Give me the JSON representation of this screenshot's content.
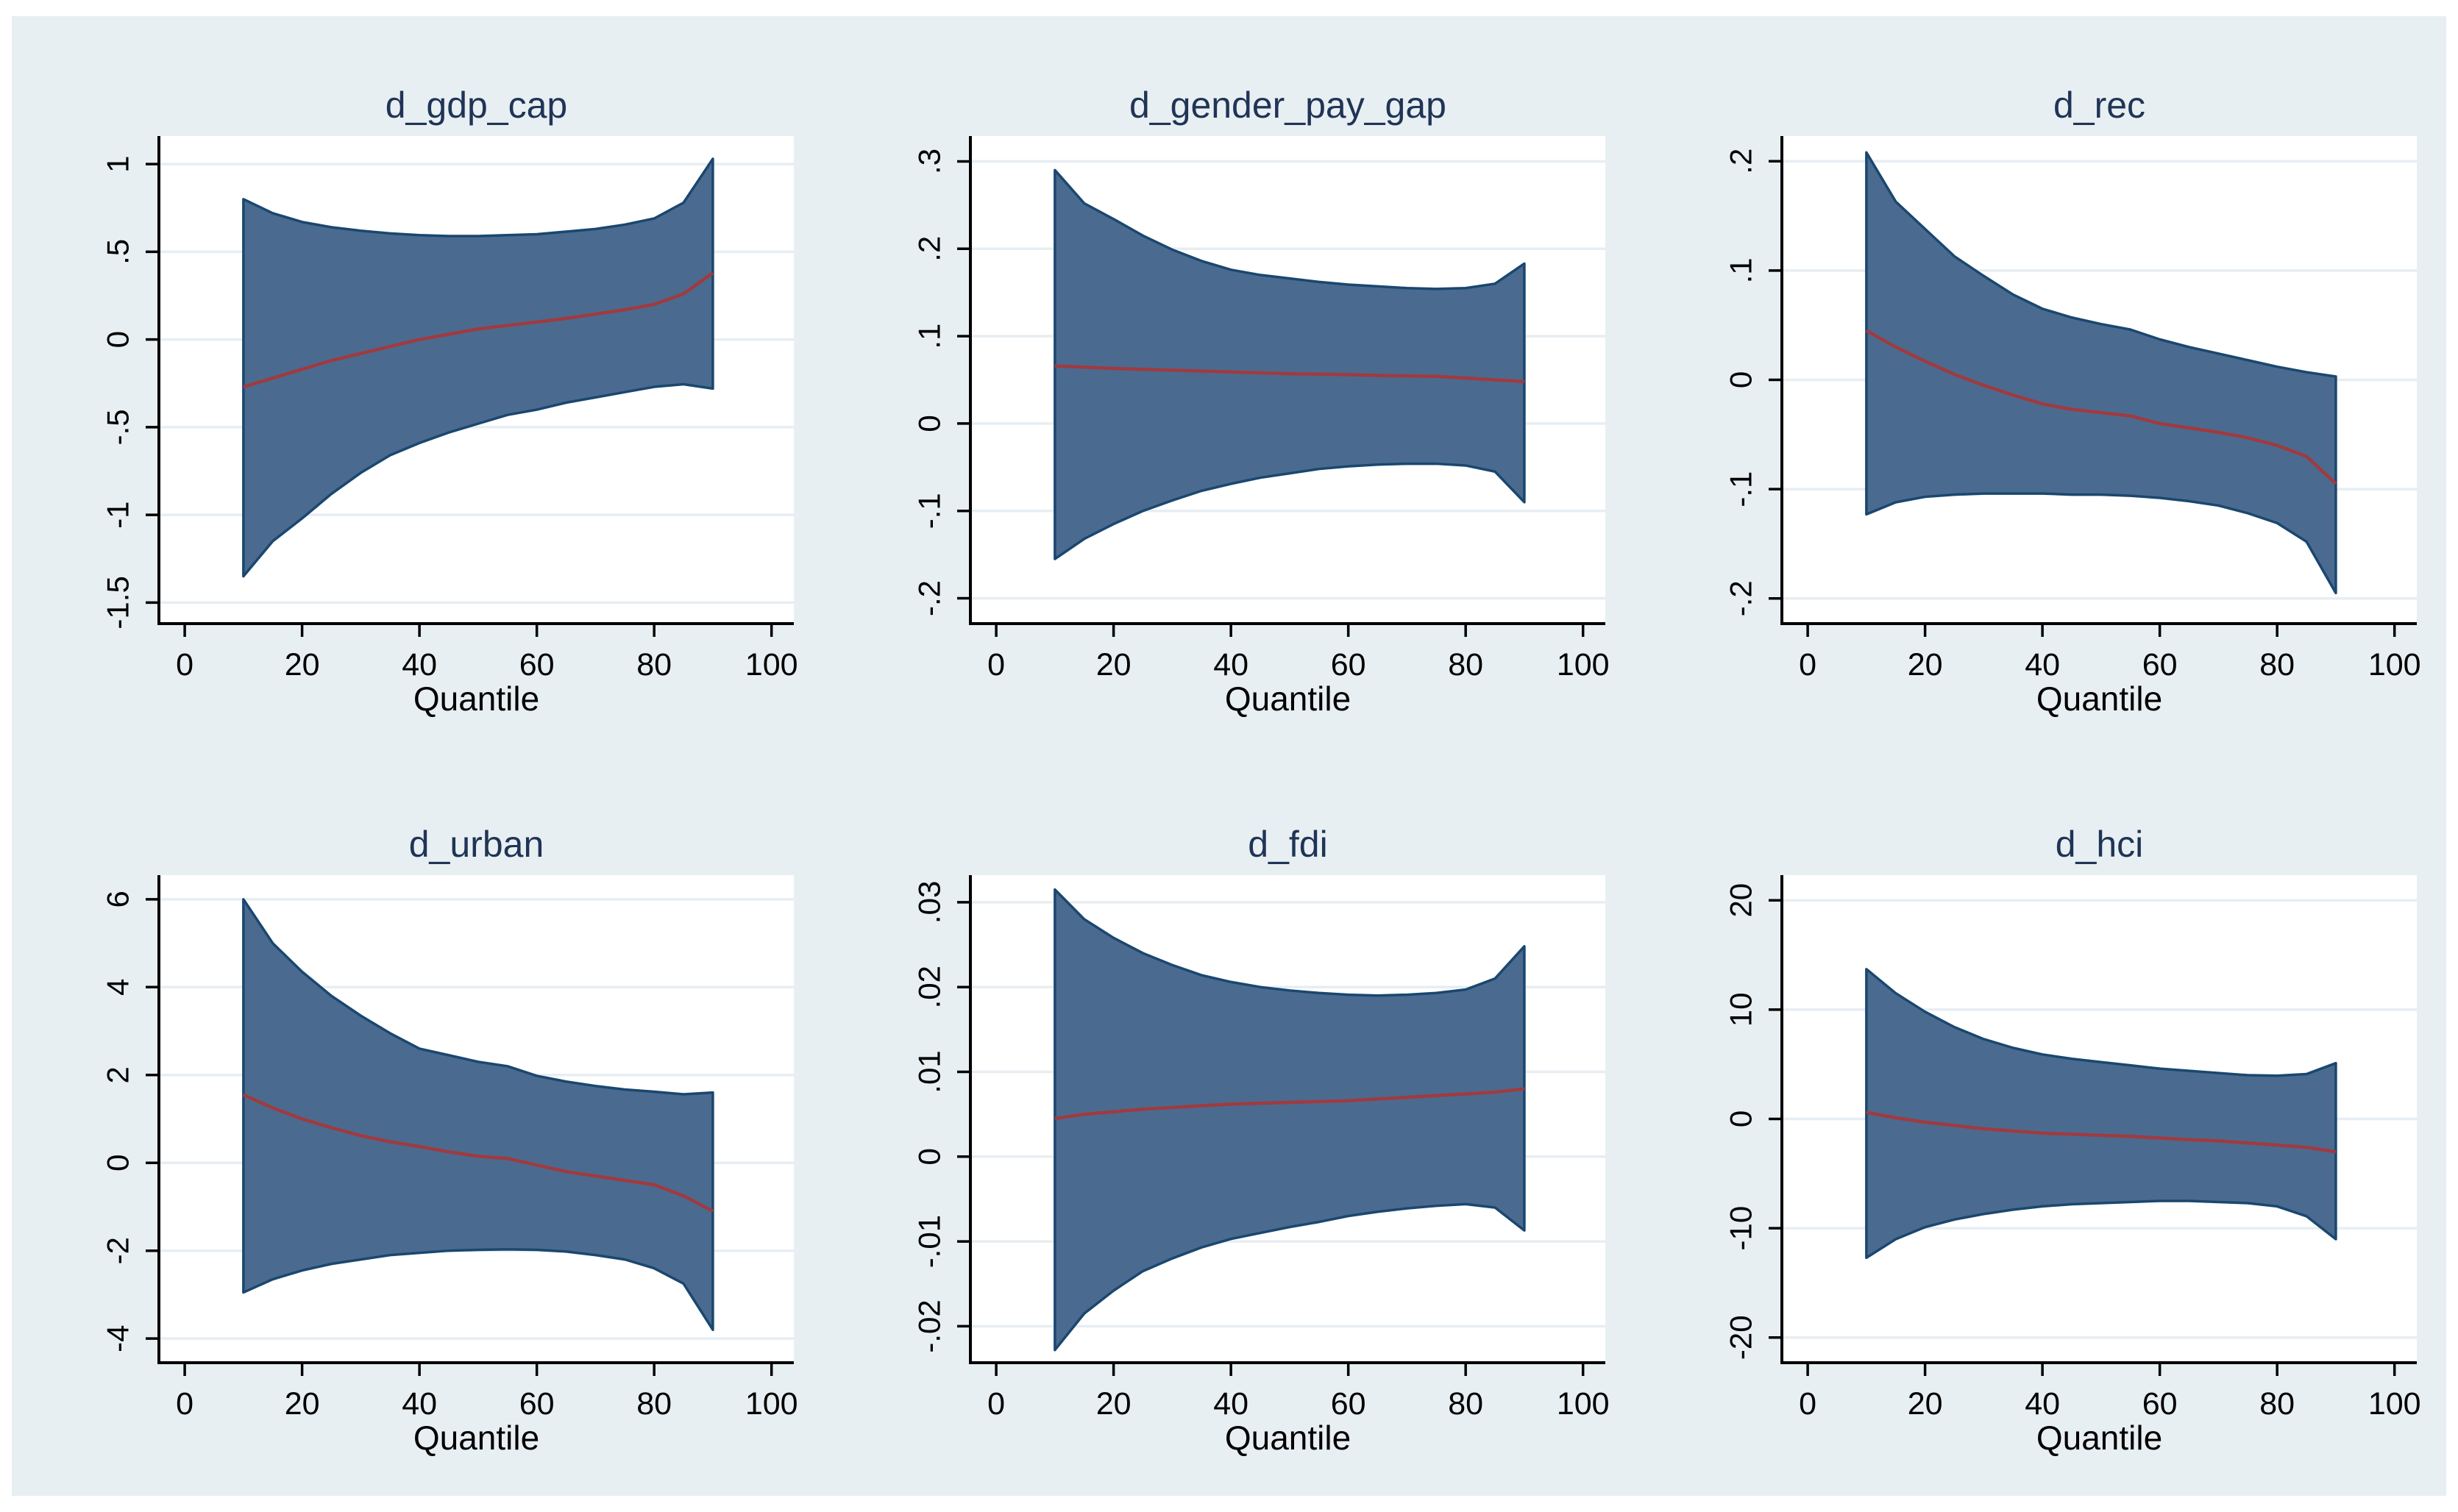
{
  "figure": {
    "outer_background": "#ffffff",
    "background": "#e8eff2"
  },
  "style": {
    "plot_background": "#ffffff",
    "grid_color": "#e7eef3",
    "axis_color": "#000000",
    "tick_label_color": "#000000",
    "title_color": "#1f3456",
    "band_fill": "#4a6b8f",
    "band_edge": "#1a476f",
    "line_color": "#a03a40"
  },
  "chart_data": [
    {
      "type": "area",
      "title": "d_gdp_cap",
      "xlabel": "Quantile",
      "grid": "horizontal",
      "legend": "none",
      "xlim": [
        -4.4,
        103.8
      ],
      "ylim": [
        -1.62,
        1.16
      ],
      "xticks": [
        0,
        20,
        40,
        60,
        80,
        100
      ],
      "yticks": [
        {
          "value": 1,
          "label": "1"
        },
        {
          "value": 0.5,
          "label": ".5"
        },
        {
          "value": 0,
          "label": "0"
        },
        {
          "value": -0.5,
          "label": "-.5"
        },
        {
          "value": -1,
          "label": "-1"
        },
        {
          "value": -1.5,
          "label": "-1.5"
        }
      ],
      "x": [
        10,
        15,
        20,
        25,
        30,
        35,
        40,
        45,
        50,
        55,
        60,
        65,
        70,
        75,
        80,
        85,
        90
      ],
      "series": [
        {
          "name": "upper_ci",
          "values": [
            0.8,
            0.72,
            0.67,
            0.64,
            0.62,
            0.605,
            0.595,
            0.59,
            0.59,
            0.595,
            0.6,
            0.615,
            0.63,
            0.655,
            0.69,
            0.78,
            1.03
          ]
        },
        {
          "name": "estimate",
          "values": [
            -0.27,
            -0.22,
            -0.17,
            -0.12,
            -0.08,
            -0.04,
            0.0,
            0.03,
            0.06,
            0.08,
            0.1,
            0.12,
            0.145,
            0.17,
            0.2,
            0.26,
            0.38
          ]
        },
        {
          "name": "lower_ci",
          "values": [
            -1.35,
            -1.15,
            -1.02,
            -0.88,
            -0.76,
            -0.66,
            -0.59,
            -0.53,
            -0.48,
            -0.43,
            -0.4,
            -0.36,
            -0.33,
            -0.3,
            -0.27,
            -0.255,
            -0.28
          ]
        }
      ]
    },
    {
      "type": "area",
      "title": "d_gender_pay_gap",
      "xlabel": "Quantile",
      "grid": "horizontal",
      "legend": "none",
      "xlim": [
        -4.4,
        103.8
      ],
      "ylim": [
        -0.229,
        0.329
      ],
      "xticks": [
        0,
        20,
        40,
        60,
        80,
        100
      ],
      "yticks": [
        {
          "value": 0.3,
          "label": ".3"
        },
        {
          "value": 0.2,
          "label": ".2"
        },
        {
          "value": 0.1,
          "label": ".1"
        },
        {
          "value": 0,
          "label": "0"
        },
        {
          "value": -0.1,
          "label": "-.1"
        },
        {
          "value": -0.2,
          "label": "-.2"
        }
      ],
      "x": [
        10,
        15,
        20,
        25,
        30,
        35,
        40,
        45,
        50,
        55,
        60,
        65,
        70,
        75,
        80,
        85,
        90
      ],
      "series": [
        {
          "name": "upper_ci",
          "values": [
            0.29,
            0.252,
            0.234,
            0.215,
            0.199,
            0.186,
            0.176,
            0.17,
            0.166,
            0.162,
            0.159,
            0.157,
            0.155,
            0.154,
            0.155,
            0.16,
            0.183
          ]
        },
        {
          "name": "estimate",
          "values": [
            0.066,
            0.0645,
            0.063,
            0.062,
            0.061,
            0.06,
            0.059,
            0.058,
            0.057,
            0.0565,
            0.056,
            0.055,
            0.0545,
            0.054,
            0.052,
            0.05,
            0.048
          ]
        },
        {
          "name": "lower_ci",
          "values": [
            -0.155,
            -0.132,
            -0.115,
            -0.1,
            -0.088,
            -0.077,
            -0.069,
            -0.062,
            -0.057,
            -0.052,
            -0.049,
            -0.047,
            -0.046,
            -0.046,
            -0.048,
            -0.055,
            -0.09
          ]
        }
      ]
    },
    {
      "type": "area",
      "title": "d_rec",
      "xlabel": "Quantile",
      "grid": "horizontal",
      "legend": "none",
      "xlim": [
        -4.4,
        103.8
      ],
      "ylim": [
        -0.223,
        0.223
      ],
      "xticks": [
        0,
        20,
        40,
        60,
        80,
        100
      ],
      "yticks": [
        {
          "value": 0.2,
          "label": ".2"
        },
        {
          "value": 0.1,
          "label": ".1"
        },
        {
          "value": 0,
          "label": "0"
        },
        {
          "value": -0.1,
          "label": "-.1"
        },
        {
          "value": -0.2,
          "label": "-.2"
        }
      ],
      "x": [
        10,
        15,
        20,
        25,
        30,
        35,
        40,
        45,
        50,
        55,
        60,
        65,
        70,
        75,
        80,
        85,
        90
      ],
      "series": [
        {
          "name": "upper_ci",
          "values": [
            0.208,
            0.163,
            0.138,
            0.113,
            0.095,
            0.078,
            0.065,
            0.057,
            0.051,
            0.046,
            0.037,
            0.03,
            0.024,
            0.018,
            0.012,
            0.007,
            0.003
          ]
        },
        {
          "name": "estimate",
          "values": [
            0.045,
            0.03,
            0.017,
            0.005,
            -0.005,
            -0.014,
            -0.022,
            -0.027,
            -0.03,
            -0.033,
            -0.04,
            -0.044,
            -0.048,
            -0.053,
            -0.06,
            -0.07,
            -0.095
          ]
        },
        {
          "name": "lower_ci",
          "values": [
            -0.123,
            -0.112,
            -0.107,
            -0.105,
            -0.104,
            -0.104,
            -0.104,
            -0.105,
            -0.105,
            -0.106,
            -0.108,
            -0.111,
            -0.115,
            -0.122,
            -0.131,
            -0.148,
            -0.195
          ]
        }
      ]
    },
    {
      "type": "area",
      "title": "d_urban",
      "xlabel": "Quantile",
      "grid": "horizontal",
      "legend": "none",
      "xlim": [
        -4.4,
        103.8
      ],
      "ylim": [
        -4.55,
        6.55
      ],
      "xticks": [
        0,
        20,
        40,
        60,
        80,
        100
      ],
      "yticks": [
        {
          "value": 6,
          "label": "6"
        },
        {
          "value": 4,
          "label": "4"
        },
        {
          "value": 2,
          "label": "2"
        },
        {
          "value": 0,
          "label": "0"
        },
        {
          "value": -2,
          "label": "-2"
        },
        {
          "value": -4,
          "label": "-4"
        }
      ],
      "x": [
        10,
        15,
        20,
        25,
        30,
        35,
        40,
        45,
        50,
        55,
        60,
        65,
        70,
        75,
        80,
        85,
        90
      ],
      "series": [
        {
          "name": "upper_ci",
          "values": [
            6.0,
            5.0,
            4.35,
            3.8,
            3.35,
            2.95,
            2.6,
            2.45,
            2.3,
            2.2,
            1.98,
            1.85,
            1.75,
            1.67,
            1.62,
            1.56,
            1.6
          ]
        },
        {
          "name": "estimate",
          "values": [
            1.55,
            1.25,
            1.0,
            0.8,
            0.62,
            0.48,
            0.37,
            0.25,
            0.15,
            0.1,
            -0.05,
            -0.2,
            -0.3,
            -0.4,
            -0.5,
            -0.75,
            -1.1
          ]
        },
        {
          "name": "lower_ci",
          "values": [
            -2.95,
            -2.65,
            -2.45,
            -2.3,
            -2.2,
            -2.1,
            -2.05,
            -2.0,
            -1.98,
            -1.97,
            -1.98,
            -2.02,
            -2.1,
            -2.2,
            -2.4,
            -2.75,
            -3.8
          ]
        }
      ]
    },
    {
      "type": "area",
      "title": "d_fdi",
      "xlabel": "Quantile",
      "grid": "horizontal",
      "legend": "none",
      "xlim": [
        -4.4,
        103.8
      ],
      "ylim": [
        -0.0243,
        0.0332
      ],
      "xticks": [
        0,
        20,
        40,
        60,
        80,
        100
      ],
      "yticks": [
        {
          "value": 0.03,
          "label": ".03"
        },
        {
          "value": 0.02,
          "label": ".02"
        },
        {
          "value": 0.01,
          "label": ".01"
        },
        {
          "value": 0,
          "label": "0"
        },
        {
          "value": -0.01,
          "label": "-.01"
        },
        {
          "value": -0.02,
          "label": "-.02"
        }
      ],
      "x": [
        10,
        15,
        20,
        25,
        30,
        35,
        40,
        45,
        50,
        55,
        60,
        65,
        70,
        75,
        80,
        85,
        90
      ],
      "series": [
        {
          "name": "upper_ci",
          "values": [
            0.0315,
            0.028,
            0.0258,
            0.024,
            0.0226,
            0.0214,
            0.0206,
            0.02,
            0.0196,
            0.0193,
            0.0191,
            0.019,
            0.0191,
            0.0193,
            0.0197,
            0.021,
            0.0248
          ]
        },
        {
          "name": "estimate",
          "values": [
            0.0045,
            0.005,
            0.0053,
            0.0056,
            0.0058,
            0.006,
            0.0062,
            0.0063,
            0.0064,
            0.0065,
            0.0066,
            0.0068,
            0.007,
            0.0072,
            0.0074,
            0.0076,
            0.008
          ]
        },
        {
          "name": "lower_ci",
          "values": [
            -0.0228,
            -0.0185,
            -0.0158,
            -0.0135,
            -0.012,
            -0.0107,
            -0.0097,
            -0.009,
            -0.0083,
            -0.0077,
            -0.007,
            -0.0065,
            -0.0061,
            -0.0058,
            -0.0056,
            -0.006,
            -0.0087
          ]
        }
      ]
    },
    {
      "type": "area",
      "title": "d_hci",
      "xlabel": "Quantile",
      "grid": "horizontal",
      "legend": "none",
      "xlim": [
        -4.4,
        103.8
      ],
      "ylim": [
        -22.3,
        22.3
      ],
      "xticks": [
        0,
        20,
        40,
        60,
        80,
        100
      ],
      "yticks": [
        {
          "value": 20,
          "label": "20"
        },
        {
          "value": 10,
          "label": "10"
        },
        {
          "value": 0,
          "label": "0"
        },
        {
          "value": -10,
          "label": "-10"
        },
        {
          "value": -20,
          "label": "-20"
        }
      ],
      "x": [
        10,
        15,
        20,
        25,
        30,
        35,
        40,
        45,
        50,
        55,
        60,
        65,
        70,
        75,
        80,
        85,
        90
      ],
      "series": [
        {
          "name": "upper_ci",
          "values": [
            13.7,
            11.5,
            9.8,
            8.4,
            7.3,
            6.5,
            5.9,
            5.5,
            5.2,
            4.9,
            4.6,
            4.4,
            4.2,
            4.0,
            3.95,
            4.1,
            5.1
          ]
        },
        {
          "name": "estimate",
          "values": [
            0.6,
            0.1,
            -0.3,
            -0.6,
            -0.9,
            -1.1,
            -1.3,
            -1.4,
            -1.5,
            -1.6,
            -1.75,
            -1.9,
            -2.0,
            -2.2,
            -2.4,
            -2.6,
            -3.0
          ]
        },
        {
          "name": "lower_ci",
          "values": [
            -12.7,
            -11.0,
            -9.9,
            -9.2,
            -8.7,
            -8.3,
            -8.0,
            -7.8,
            -7.7,
            -7.6,
            -7.5,
            -7.5,
            -7.6,
            -7.7,
            -8.0,
            -8.9,
            -11.0
          ]
        }
      ]
    }
  ]
}
